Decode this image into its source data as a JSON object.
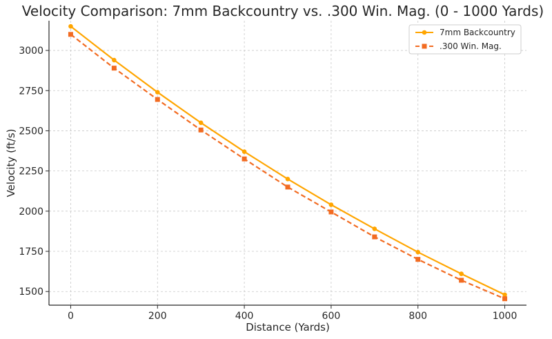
{
  "chart_data": {
    "type": "line",
    "title": "Velocity Comparison: 7mm Backcountry vs. .300 Win. Mag. (0 - 1000 Yards)",
    "xlabel": "Distance (Yards)",
    "ylabel": "Velocity (ft/s)",
    "x": [
      0,
      100,
      200,
      300,
      400,
      500,
      600,
      700,
      800,
      900,
      1000
    ],
    "xlim": [
      -50,
      1050
    ],
    "ylim": [
      1415,
      3185
    ],
    "xticks": [
      0,
      200,
      400,
      600,
      800,
      1000
    ],
    "yticks": [
      1500,
      1750,
      2000,
      2250,
      2500,
      2750,
      3000
    ],
    "grid": true,
    "legend_position": "top-right",
    "series": [
      {
        "name": "7mm Backcountry",
        "color": "#FFA500",
        "line_style": "solid",
        "marker": "circle",
        "values": [
          3150,
          2940,
          2740,
          2550,
          2370,
          2200,
          2040,
          1890,
          1745,
          1610,
          1480
        ]
      },
      {
        "name": ".300 Win. Mag.",
        "color": "#F26B21",
        "line_style": "dashed",
        "marker": "square",
        "values": [
          3100,
          2890,
          2695,
          2505,
          2325,
          2150,
          1995,
          1840,
          1700,
          1570,
          1455
        ]
      }
    ]
  }
}
